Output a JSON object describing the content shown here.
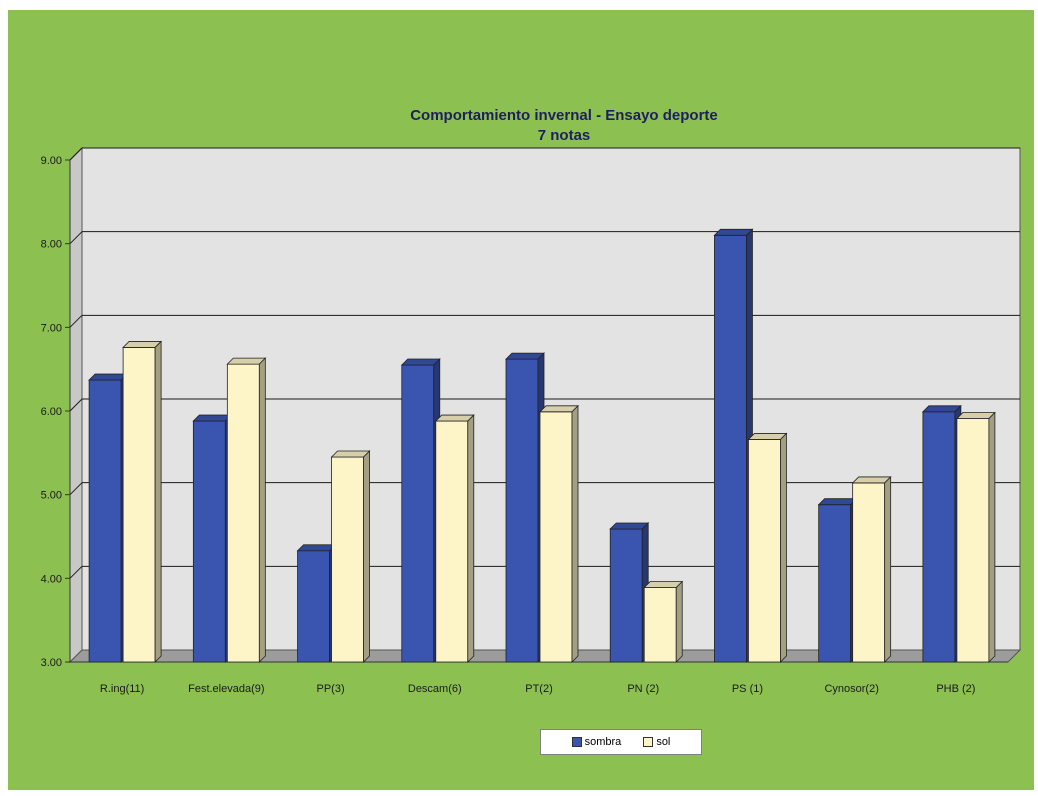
{
  "chart_data": {
    "type": "bar",
    "title": "Comportamiento invernal  - Ensayo deporte",
    "subtitle": "7 notas",
    "categories": [
      "R.ing(11)",
      "Fest.elevada(9)",
      "PP(3)",
      "Descam(6)",
      "PT(2)",
      "PN (2)",
      "PS (1)",
      "Cynosor(2)",
      "PHB (2)"
    ],
    "series": [
      {
        "name": "sombra",
        "values": [
          6.37,
          5.88,
          4.33,
          6.55,
          6.62,
          4.59,
          8.1,
          4.88,
          5.99
        ]
      },
      {
        "name": "sol",
        "values": [
          6.76,
          6.56,
          5.45,
          5.88,
          5.99,
          3.89,
          5.66,
          5.14,
          5.91
        ]
      }
    ],
    "y_ticks": [
      "3.00",
      "4.00",
      "5.00",
      "6.00",
      "7.00",
      "8.00",
      "9.00"
    ],
    "ylim": [
      3,
      9
    ],
    "grid": true,
    "legend_position": "bottom",
    "colors": {
      "sombra": "#3a55b0",
      "sol": "#fdf4c8",
      "background": "#8cc152",
      "plot_area": "#e3e3e3"
    }
  }
}
